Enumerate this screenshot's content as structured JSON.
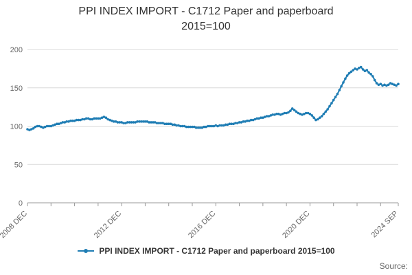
{
  "title": {
    "line1": "PPI INDEX IMPORT - C1712 Paper and paperboard",
    "line2": "2015=100"
  },
  "legend": {
    "label": "PPI INDEX IMPORT - C1712 Paper and paperboard 2015=100"
  },
  "footer": {
    "source_label": "Source:"
  },
  "colors": {
    "series": "#1f7db4",
    "grid": "#d8d8d8",
    "axis": "#999999",
    "axis_text": "#666666",
    "title_text": "#333333"
  },
  "chart_data": {
    "type": "line",
    "title": "PPI INDEX IMPORT - C1712 Paper and paperboard 2015=100",
    "x_start": "2008-12",
    "x_end": "2024-09",
    "frequency": "monthly",
    "ylim": [
      0,
      200
    ],
    "y_ticks": [
      0,
      50,
      100,
      150,
      200
    ],
    "grid": "horizontal",
    "legend_position": "bottom",
    "x_tick_labels": [
      {
        "index": 0,
        "label": "2008 DEC"
      },
      {
        "index": 48,
        "label": "2012 DEC"
      },
      {
        "index": 96,
        "label": "2016 DEC"
      },
      {
        "index": 144,
        "label": "2020 DEC"
      },
      {
        "index": 189,
        "label": "2024 SEP"
      }
    ],
    "series": [
      {
        "name": "PPI INDEX IMPORT - C1712 Paper and paperboard 2015=100",
        "values": [
          96,
          95,
          96,
          97,
          99,
          100,
          100,
          99,
          98,
          99,
          100,
          100,
          100,
          101,
          102,
          103,
          103,
          104,
          105,
          105,
          106,
          106,
          107,
          107,
          107,
          108,
          108,
          108,
          109,
          109,
          110,
          110,
          109,
          109,
          110,
          110,
          110,
          110,
          111,
          112,
          111,
          109,
          108,
          107,
          106,
          106,
          105,
          105,
          105,
          104,
          104,
          105,
          105,
          105,
          105,
          105,
          106,
          106,
          106,
          106,
          106,
          106,
          105,
          105,
          105,
          105,
          104,
          104,
          104,
          104,
          103,
          103,
          103,
          103,
          102,
          102,
          101,
          101,
          100,
          100,
          100,
          99,
          99,
          99,
          99,
          99,
          98,
          98,
          98,
          98,
          99,
          99,
          100,
          100,
          100,
          100,
          101,
          100,
          101,
          101,
          101,
          102,
          102,
          103,
          103,
          103,
          104,
          104,
          105,
          105,
          106,
          106,
          107,
          107,
          108,
          108,
          109,
          110,
          110,
          111,
          111,
          112,
          113,
          113,
          114,
          115,
          115,
          116,
          116,
          115,
          116,
          117,
          117,
          118,
          120,
          123,
          121,
          119,
          117,
          116,
          115,
          116,
          117,
          117,
          116,
          114,
          111,
          108,
          109,
          111,
          113,
          116,
          119,
          122,
          126,
          130,
          134,
          138,
          142,
          147,
          152,
          157,
          162,
          166,
          169,
          171,
          173,
          175,
          174,
          176,
          177,
          174,
          172,
          173,
          170,
          168,
          165,
          160,
          156,
          154,
          155,
          153,
          154,
          153,
          154,
          156,
          155,
          154,
          153,
          155
        ]
      }
    ]
  }
}
